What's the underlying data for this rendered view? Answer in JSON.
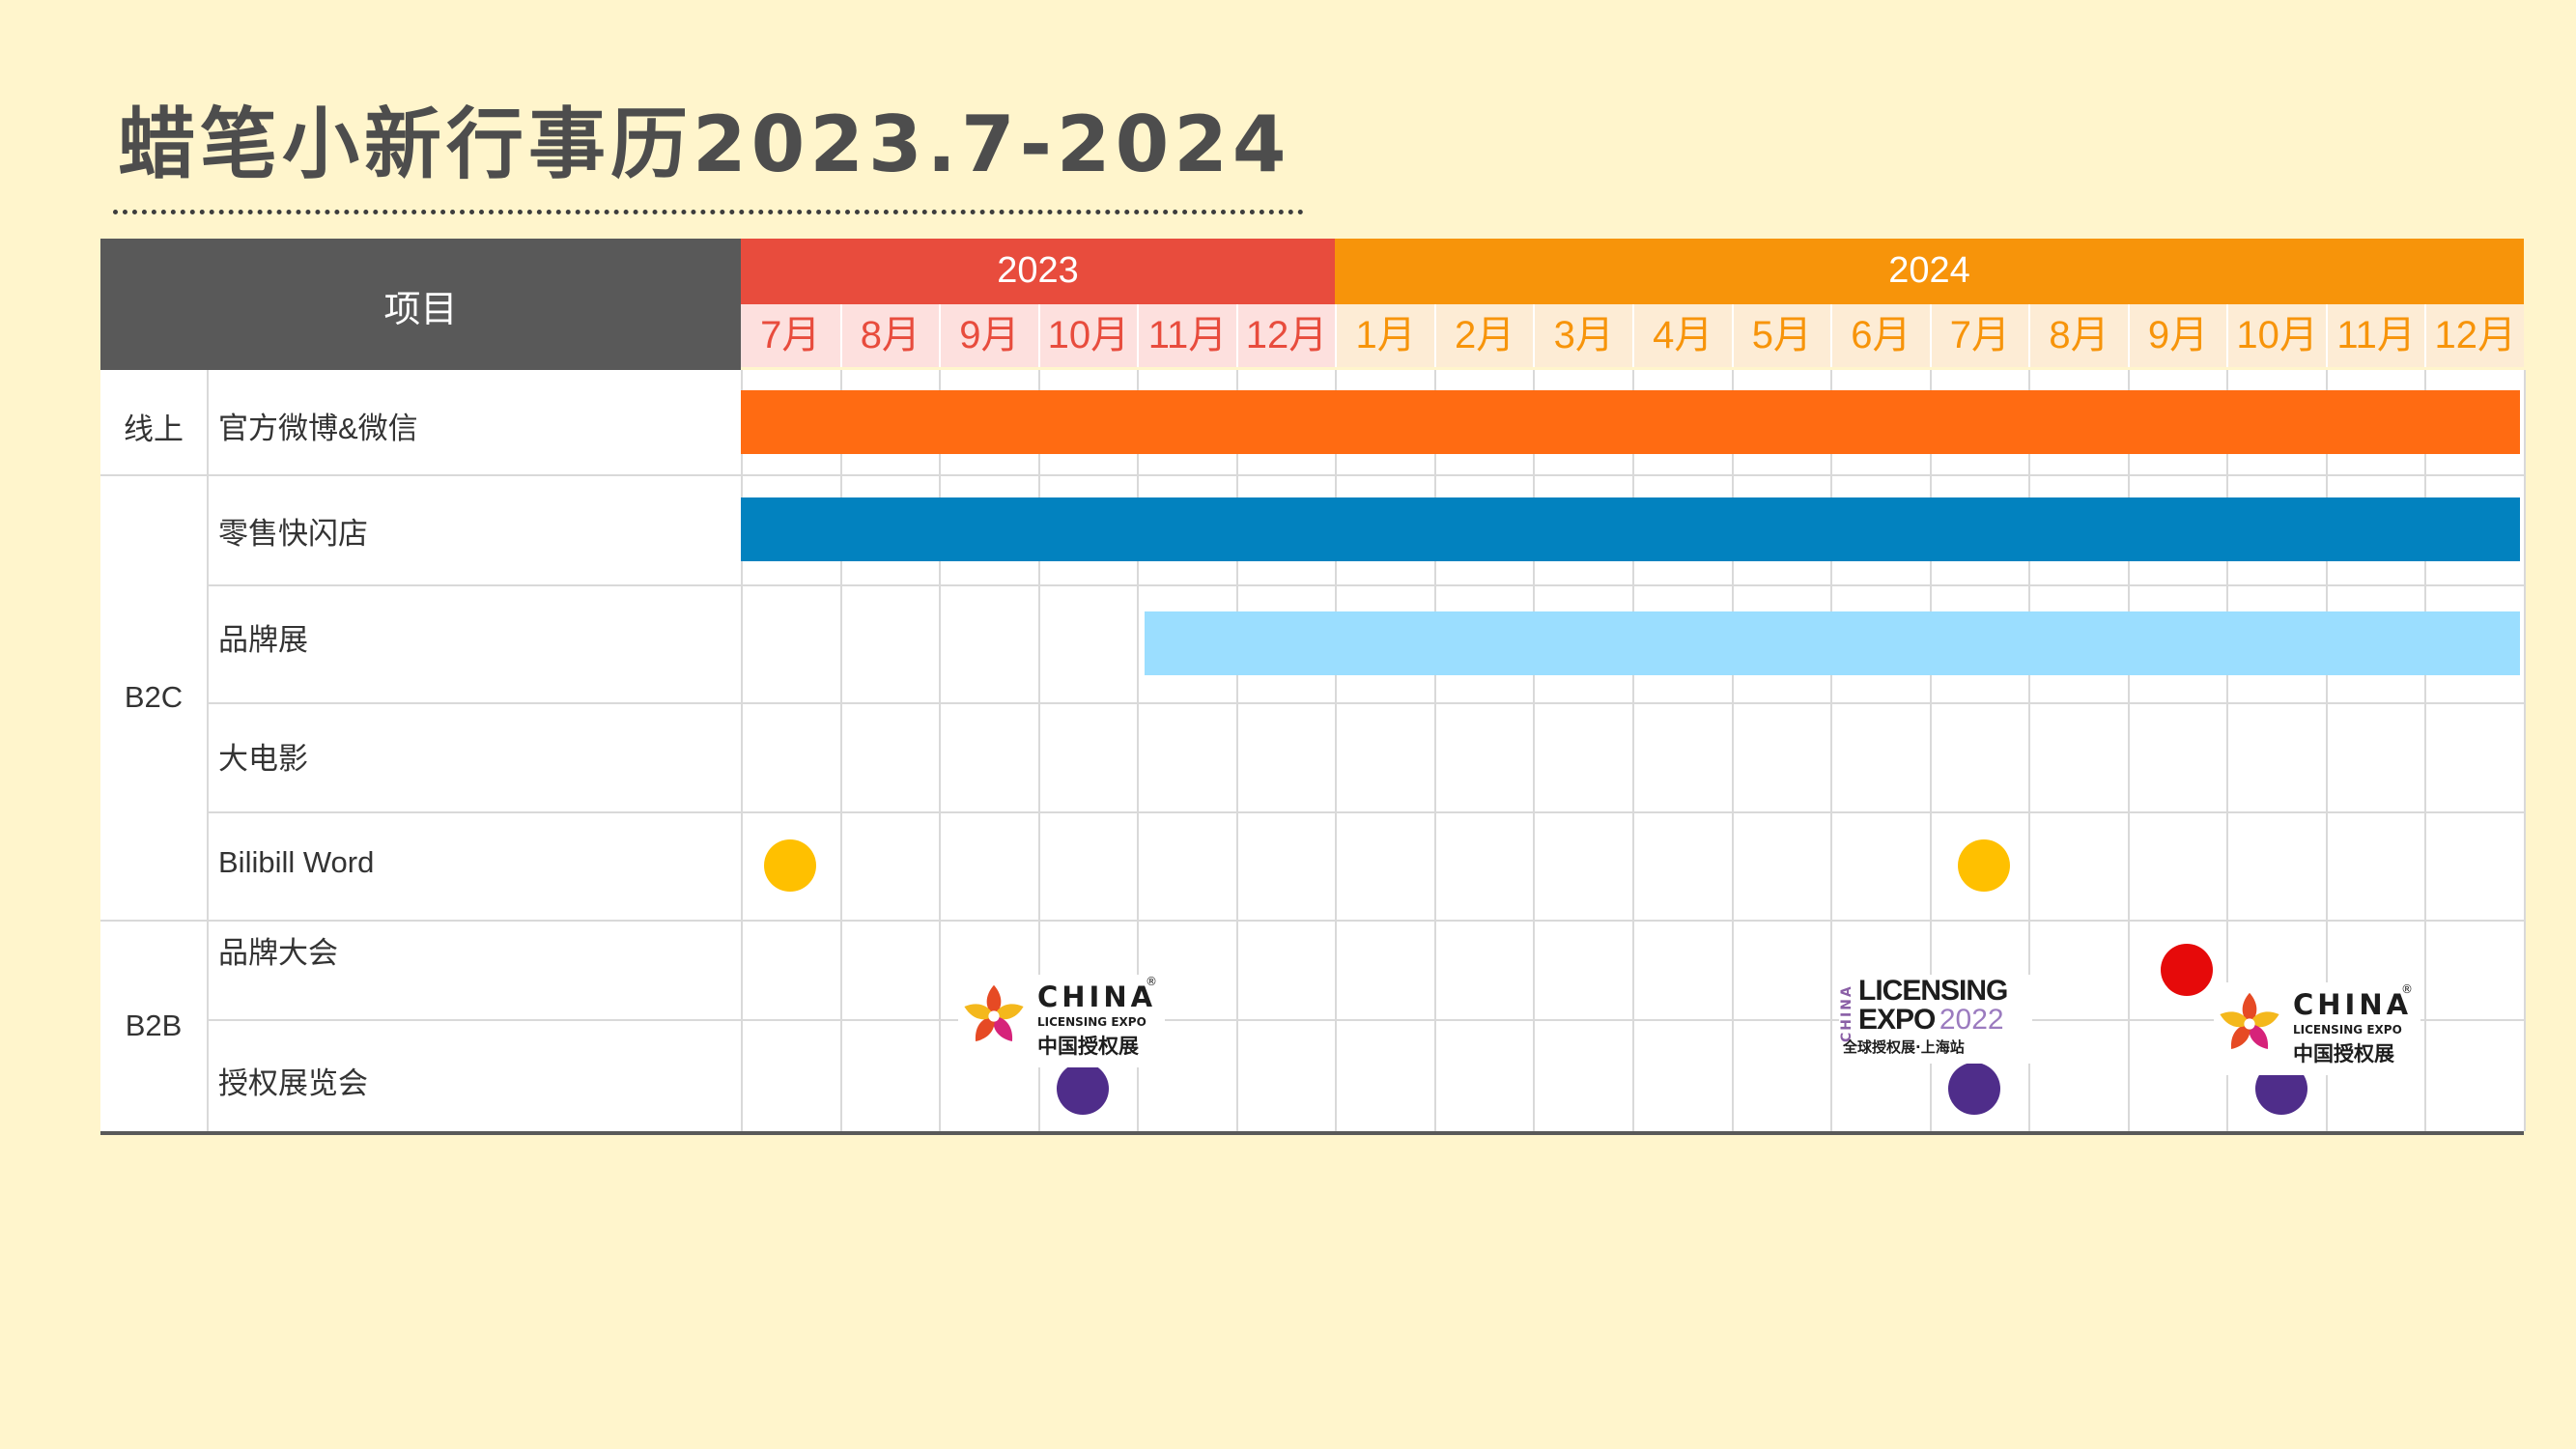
{
  "title": "蜡笔小新行事历2023.7-2024",
  "header": {
    "project_label": "项目",
    "years": [
      {
        "label": "2023",
        "color": "#e84c3d",
        "months": 6
      },
      {
        "label": "2024",
        "color": "#f7940a",
        "months": 12
      }
    ],
    "months": [
      "7月",
      "8月",
      "9月",
      "10月",
      "11月",
      "12月",
      "1月",
      "2月",
      "3月",
      "4月",
      "5月",
      "6月",
      "7月",
      "8月",
      "9月",
      "10月",
      "11月",
      "12月"
    ]
  },
  "colors": {
    "header_dark": "#595959",
    "month_2023_bg": "#fde0de",
    "month_2023_text": "#e84c3d",
    "month_2024_bg": "#fdecd5",
    "month_2024_text": "#f7940a",
    "grid": "#d9d9d9",
    "page_bg": "#fff5cc"
  },
  "groups": [
    {
      "label": "线上"
    },
    {
      "label": "B2C"
    },
    {
      "label": "B2B"
    }
  ],
  "rows": [
    {
      "label": "官方微博&微信"
    },
    {
      "label": "零售快闪店"
    },
    {
      "label": "品牌展"
    },
    {
      "label": "大电影"
    },
    {
      "label": "Bilibill Word"
    },
    {
      "label": "品牌大会"
    },
    {
      "label": "授权展览会"
    }
  ],
  "bars": [
    {
      "row": 0,
      "start": 0,
      "end": 18,
      "color": "#ff6b12"
    },
    {
      "row": 1,
      "start": 0,
      "end": 18,
      "color": "#0282bf"
    },
    {
      "row": 2,
      "start": 4.08,
      "end": 18,
      "color": "#9bdeff"
    }
  ],
  "dots": [
    {
      "row": 4,
      "month": 0.5,
      "color": "#ffc000"
    },
    {
      "row": 4,
      "month": 12.55,
      "color": "#ffc000"
    },
    {
      "row": 5,
      "month": 14.6,
      "color": "#e60a0a"
    },
    {
      "row": 6,
      "month": 3.45,
      "color": "#4f2d8a"
    },
    {
      "row": 6,
      "month": 12.45,
      "color": "#4f2d8a"
    },
    {
      "row": 6,
      "month": 15.55,
      "color": "#4f2d8a"
    }
  ],
  "logos": {
    "china_expo": {
      "word": "CHINA",
      "reg": "®",
      "sub_en": "LICENSING EXPO",
      "sub_cn": "中国授权展"
    },
    "licensing_expo_2022": {
      "side": "CHINA",
      "line1": "LICENSING",
      "line2_word": "EXPO",
      "line2_year": "2022",
      "line3": "全球授权展·上海站"
    }
  }
}
